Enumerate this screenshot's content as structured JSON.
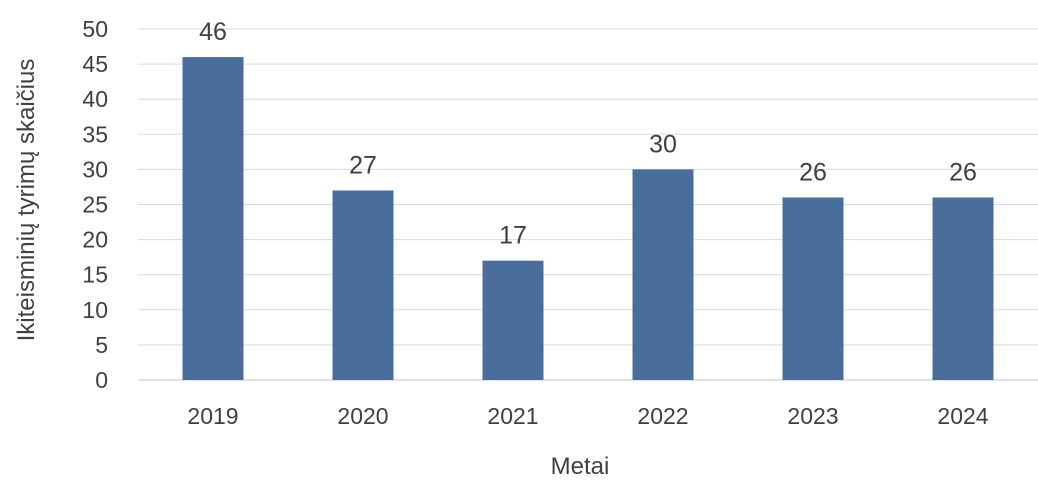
{
  "chart_data": {
    "type": "bar",
    "title": "",
    "xlabel": "Metai",
    "ylabel": "Ikiteisminių tyrimų skaičius",
    "categories": [
      "2019",
      "2020",
      "2021",
      "2022",
      "2023",
      "2024"
    ],
    "values": [
      46,
      27,
      17,
      30,
      26,
      26
    ],
    "ylim": [
      0,
      50
    ],
    "yticks": [
      0,
      5,
      10,
      15,
      20,
      25,
      30,
      35,
      40,
      45,
      50
    ],
    "grid": true,
    "legend": "none",
    "bar_color": "#4a6e9c",
    "show_data_labels": true
  }
}
